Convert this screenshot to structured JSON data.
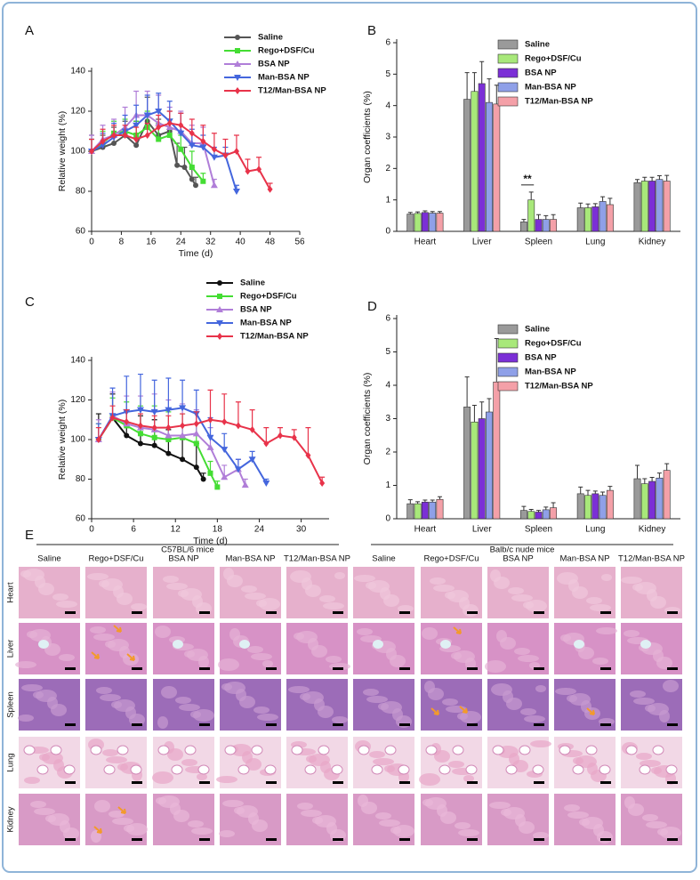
{
  "panel_labels": [
    "A",
    "B",
    "C",
    "D",
    "E"
  ],
  "chart_data": [
    {
      "type": "line",
      "xlabel": "Time (d)",
      "ylabel": "Relative weight (%)",
      "xlim": [
        0,
        56
      ],
      "xticks": [
        0,
        8,
        16,
        24,
        32,
        40,
        48,
        56
      ],
      "ylim": [
        60,
        140
      ],
      "yticks": [
        60,
        80,
        100,
        120,
        140
      ],
      "series": [
        {
          "name": "Saline",
          "color": "#555555",
          "x": [
            0,
            3,
            6,
            9,
            12,
            15,
            18,
            21,
            23,
            25,
            27,
            28
          ],
          "values": [
            100,
            102,
            104,
            108,
            103,
            115,
            108,
            110,
            93,
            92,
            86,
            83
          ],
          "errors": [
            8,
            6,
            8,
            7,
            12,
            12,
            8,
            10,
            11,
            10,
            6,
            4
          ]
        },
        {
          "name": "Rego+DSF/Cu",
          "color": "#44dd33",
          "x": [
            0,
            3,
            6,
            9,
            12,
            15,
            18,
            21,
            24,
            27,
            30
          ],
          "values": [
            100,
            104,
            109,
            110,
            108,
            112,
            106,
            108,
            101,
            92,
            85
          ],
          "errors": [
            6,
            6,
            6,
            6,
            7,
            8,
            8,
            8,
            7,
            8,
            4
          ]
        },
        {
          "name": "BSA NP",
          "color": "#b07ed8",
          "x": [
            0,
            3,
            6,
            9,
            12,
            15,
            18,
            21,
            24,
            27,
            30,
            33
          ],
          "values": [
            100,
            106,
            108,
            112,
            118,
            118,
            114,
            112,
            110,
            104,
            104,
            83
          ],
          "errors": [
            8,
            7,
            8,
            10,
            12,
            12,
            14,
            10,
            10,
            9,
            8,
            3
          ]
        },
        {
          "name": "Man-BSA NP",
          "color": "#4466dd",
          "x": [
            0,
            3,
            6,
            9,
            12,
            15,
            18,
            21,
            24,
            27,
            30,
            33,
            36,
            39
          ],
          "values": [
            100,
            103,
            107,
            110,
            113,
            118,
            120,
            115,
            109,
            103,
            102,
            97,
            98,
            80
          ],
          "errors": [
            6,
            6,
            7,
            8,
            10,
            10,
            9,
            10,
            10,
            8,
            6,
            5,
            4,
            3
          ]
        },
        {
          "name": "T12/Man-BSA NP",
          "color": "#e8334a",
          "x": [
            0,
            3,
            6,
            9,
            12,
            15,
            18,
            21,
            24,
            27,
            30,
            33,
            36,
            39,
            42,
            45,
            48
          ],
          "values": [
            100,
            105,
            108,
            108,
            106,
            108,
            112,
            114,
            113,
            109,
            105,
            101,
            98,
            100,
            90,
            91,
            81
          ],
          "errors": [
            6,
            6,
            5,
            5,
            6,
            6,
            6,
            6,
            6,
            7,
            8,
            8,
            8,
            8,
            6,
            6,
            3
          ]
        }
      ]
    },
    {
      "type": "bar",
      "ylabel": "Organ coefficients (%)",
      "categories": [
        "Heart",
        "Liver",
        "Spleen",
        "Lung",
        "Kidney"
      ],
      "ylim": [
        0,
        6
      ],
      "yticks": [
        0,
        1,
        2,
        3,
        4,
        5,
        6
      ],
      "annotations": [
        {
          "text": "**"
        }
      ],
      "series": [
        {
          "name": "Saline",
          "color": "#9a9a9a",
          "values": [
            0.55,
            4.2,
            0.3,
            0.75,
            1.55
          ],
          "errors": [
            0.05,
            0.85,
            0.08,
            0.15,
            0.1
          ]
        },
        {
          "name": "Rego+DSF/Cu",
          "color": "#a8e87a",
          "values": [
            0.57,
            4.45,
            1.0,
            0.75,
            1.6
          ],
          "errors": [
            0.05,
            0.6,
            0.25,
            0.12,
            0.12
          ]
        },
        {
          "name": "BSA NP",
          "color": "#7b2fd6",
          "values": [
            0.6,
            4.7,
            0.38,
            0.78,
            1.6
          ],
          "errors": [
            0.05,
            0.7,
            0.15,
            0.1,
            0.12
          ]
        },
        {
          "name": "Man-BSA NP",
          "color": "#8fa0e8",
          "values": [
            0.58,
            4.1,
            0.38,
            0.95,
            1.65
          ],
          "errors": [
            0.05,
            0.75,
            0.12,
            0.15,
            0.12
          ]
        },
        {
          "name": "T12/Man-BSA NP",
          "color": "#f4a0a8",
          "values": [
            0.58,
            4.05,
            0.38,
            0.85,
            1.6
          ],
          "errors": [
            0.05,
            0.6,
            0.15,
            0.2,
            0.18
          ]
        }
      ]
    },
    {
      "type": "line",
      "xlabel": "Time (d)",
      "ylabel": "Relative weight (%)",
      "xlim": [
        0,
        34
      ],
      "xticks": [
        0,
        6,
        12,
        18,
        24,
        30
      ],
      "ylim": [
        60,
        140
      ],
      "yticks": [
        60,
        80,
        100,
        120,
        140
      ],
      "series": [
        {
          "name": "Saline",
          "color": "#111111",
          "x": [
            1,
            3,
            5,
            7,
            9,
            11,
            13,
            15,
            16
          ],
          "values": [
            100,
            111,
            102,
            98,
            97,
            93,
            90,
            86,
            80
          ],
          "errors": [
            13,
            12,
            12,
            14,
            13,
            12,
            12,
            12,
            3
          ]
        },
        {
          "name": "Rego+DSF/Cu",
          "color": "#44dd33",
          "x": [
            1,
            3,
            5,
            7,
            9,
            11,
            13,
            15,
            17,
            18
          ],
          "values": [
            100,
            111,
            107,
            103,
            101,
            100,
            101,
            98,
            83,
            76
          ],
          "errors": [
            8,
            10,
            12,
            14,
            16,
            14,
            12,
            10,
            6,
            3
          ]
        },
        {
          "name": "BSA NP",
          "color": "#b07ed8",
          "x": [
            1,
            3,
            5,
            7,
            9,
            11,
            13,
            15,
            17,
            19,
            21,
            22
          ],
          "values": [
            100,
            112,
            108,
            106,
            105,
            102,
            102,
            103,
            96,
            81,
            85,
            77
          ],
          "errors": [
            10,
            12,
            14,
            16,
            18,
            18,
            16,
            12,
            10,
            6,
            5,
            3
          ]
        },
        {
          "name": "Man-BSA NP",
          "color": "#4466dd",
          "x": [
            1,
            3,
            5,
            7,
            9,
            11,
            13,
            15,
            17,
            19,
            21,
            23,
            25
          ],
          "values": [
            100,
            112,
            114,
            115,
            114,
            115,
            116,
            113,
            101,
            95,
            85,
            90,
            78
          ],
          "errors": [
            8,
            14,
            18,
            18,
            16,
            16,
            14,
            12,
            10,
            8,
            5,
            4,
            2
          ]
        },
        {
          "name": "T12/Man-BSA NP",
          "color": "#e8334a",
          "x": [
            1,
            3,
            5,
            7,
            9,
            11,
            13,
            15,
            17,
            19,
            21,
            23,
            25,
            27,
            29,
            31,
            33
          ],
          "values": [
            100,
            111,
            109,
            107,
            106,
            106,
            107,
            108,
            110,
            109,
            107,
            105,
            98,
            102,
            101,
            92,
            78
          ],
          "errors": [
            6,
            6,
            6,
            6,
            6,
            6,
            6,
            6,
            15,
            14,
            12,
            10,
            8,
            4,
            4,
            14,
            3
          ]
        }
      ]
    },
    {
      "type": "bar",
      "ylabel": "Organ coefficients (%)",
      "categories": [
        "Heart",
        "Liver",
        "Spleen",
        "Lung",
        "Kidney"
      ],
      "ylim": [
        0,
        6
      ],
      "yticks": [
        0,
        1,
        2,
        3,
        4,
        5,
        6
      ],
      "series": [
        {
          "name": "Saline",
          "color": "#9a9a9a",
          "values": [
            0.45,
            3.35,
            0.25,
            0.75,
            1.2
          ],
          "errors": [
            0.12,
            0.9,
            0.12,
            0.2,
            0.4
          ]
        },
        {
          "name": "Rego+DSF/Cu",
          "color": "#a8e87a",
          "values": [
            0.45,
            2.9,
            0.22,
            0.7,
            1.05
          ],
          "errors": [
            0.06,
            0.5,
            0.06,
            0.15,
            0.15
          ]
        },
        {
          "name": "BSA NP",
          "color": "#7b2fd6",
          "values": [
            0.5,
            3.0,
            0.2,
            0.75,
            1.12
          ],
          "errors": [
            0.06,
            0.5,
            0.05,
            0.08,
            0.12
          ]
        },
        {
          "name": "Man-BSA NP",
          "color": "#8fa0e8",
          "values": [
            0.5,
            3.2,
            0.27,
            0.7,
            1.22
          ],
          "errors": [
            0.06,
            0.4,
            0.08,
            0.1,
            0.15
          ]
        },
        {
          "name": "T12/Man-BSA NP",
          "color": "#f4a0a8",
          "values": [
            0.58,
            4.1,
            0.33,
            0.85,
            1.45
          ],
          "errors": [
            0.08,
            1.3,
            0.15,
            0.12,
            0.2
          ]
        }
      ]
    }
  ],
  "histology": {
    "groups": [
      "C57BL/6 mice",
      "Balb/c nude mice"
    ],
    "columns": [
      "Saline",
      "Rego+DSF/Cu",
      "BSA NP",
      "Man-BSA NP",
      "T12/Man-BSA NP",
      "Saline",
      "Rego+DSF/Cu",
      "BSA NP",
      "Man-BSA NP",
      "T12/Man-BSA NP"
    ],
    "rows": [
      "Heart",
      "Liver",
      "Spleen",
      "Lung",
      "Kidney"
    ]
  }
}
